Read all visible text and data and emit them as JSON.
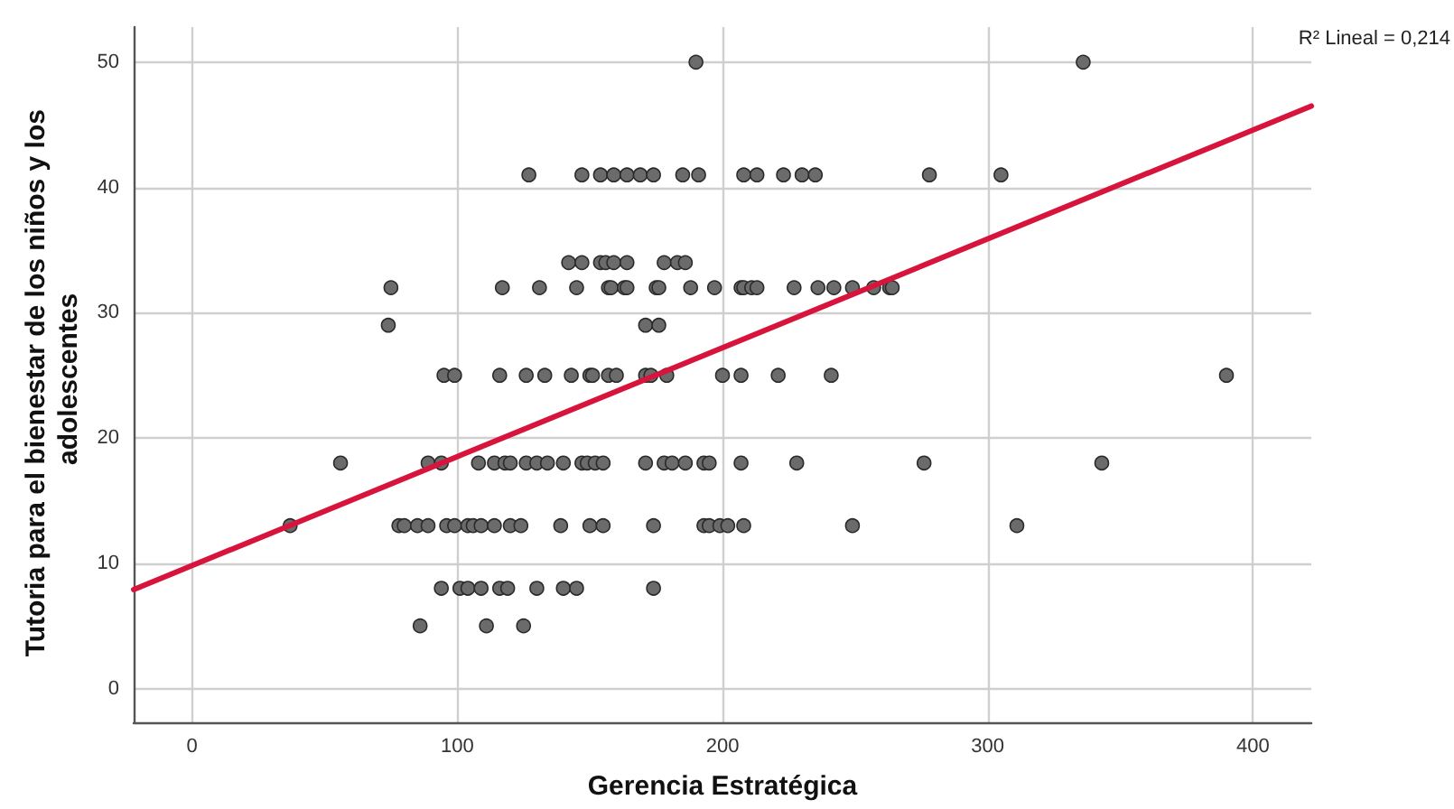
{
  "chart_data": {
    "type": "scatter",
    "xlabel": "Gerencia Estratégica",
    "ylabel": "Tutoria para el bienestar de los niños y los adolescentes",
    "annotations": [
      "R² Lineal = 0,214"
    ],
    "xlim": [
      -22,
      422
    ],
    "ylim": [
      -2.7,
      52.8
    ],
    "xticks": [
      0,
      100,
      200,
      300,
      400
    ],
    "yticks": [
      0,
      10,
      20,
      30,
      40,
      50
    ],
    "grid": true,
    "series": [
      {
        "color": "#6b6b6b",
        "marker": "circle",
        "x": [
          190,
          336,
          127,
          147,
          154,
          159,
          164,
          169,
          174,
          185,
          191,
          208,
          213,
          223,
          230,
          235,
          278,
          305,
          142,
          147,
          154,
          156,
          159,
          164,
          178,
          183,
          186,
          75,
          117,
          131,
          145,
          157,
          158,
          163,
          164,
          175,
          176,
          188,
          197,
          207,
          208,
          211,
          213,
          227,
          236,
          242,
          249,
          257,
          263,
          264,
          74,
          171,
          176,
          95,
          99,
          116,
          126,
          133,
          143,
          150,
          151,
          157,
          160,
          171,
          173,
          179,
          200,
          207,
          221,
          241,
          390,
          56,
          89,
          94,
          108,
          114,
          118,
          120,
          126,
          130,
          134,
          140,
          147,
          149,
          152,
          155,
          171,
          178,
          181,
          186,
          193,
          195,
          207,
          228,
          276,
          343,
          37,
          78,
          80,
          85,
          89,
          96,
          99,
          104,
          106,
          109,
          114,
          120,
          124,
          139,
          150,
          155,
          174,
          193,
          195,
          199,
          202,
          208,
          249,
          311,
          94,
          101,
          104,
          109,
          116,
          119,
          130,
          140,
          145,
          174,
          86,
          111,
          125
        ],
        "values": [
          50,
          50,
          41,
          41,
          41,
          41,
          41,
          41,
          41,
          41,
          41,
          41,
          41,
          41,
          41,
          41,
          41,
          41,
          34,
          34,
          34,
          34,
          34,
          34,
          34,
          34,
          34,
          32,
          32,
          32,
          32,
          32,
          32,
          32,
          32,
          32,
          32,
          32,
          32,
          32,
          32,
          32,
          32,
          32,
          32,
          32,
          32,
          32,
          32,
          32,
          29,
          29,
          29,
          25,
          25,
          25,
          25,
          25,
          25,
          25,
          25,
          25,
          25,
          25,
          25,
          25,
          25,
          25,
          25,
          25,
          25,
          18,
          18,
          18,
          18,
          18,
          18,
          18,
          18,
          18,
          18,
          18,
          18,
          18,
          18,
          18,
          18,
          18,
          18,
          18,
          18,
          18,
          18,
          18,
          18,
          18,
          13,
          13,
          13,
          13,
          13,
          13,
          13,
          13,
          13,
          13,
          13,
          13,
          13,
          13,
          13,
          13,
          13,
          13,
          13,
          13,
          13,
          13,
          13,
          13,
          8,
          8,
          8,
          8,
          8,
          8,
          8,
          8,
          8,
          8,
          5,
          5,
          5
        ]
      },
      {
        "type": "line",
        "color": "#d7143c",
        "line_style": "solid",
        "marker": "none",
        "x": [
          -22,
          422
        ],
        "values": [
          7.9,
          46.5
        ]
      }
    ]
  }
}
